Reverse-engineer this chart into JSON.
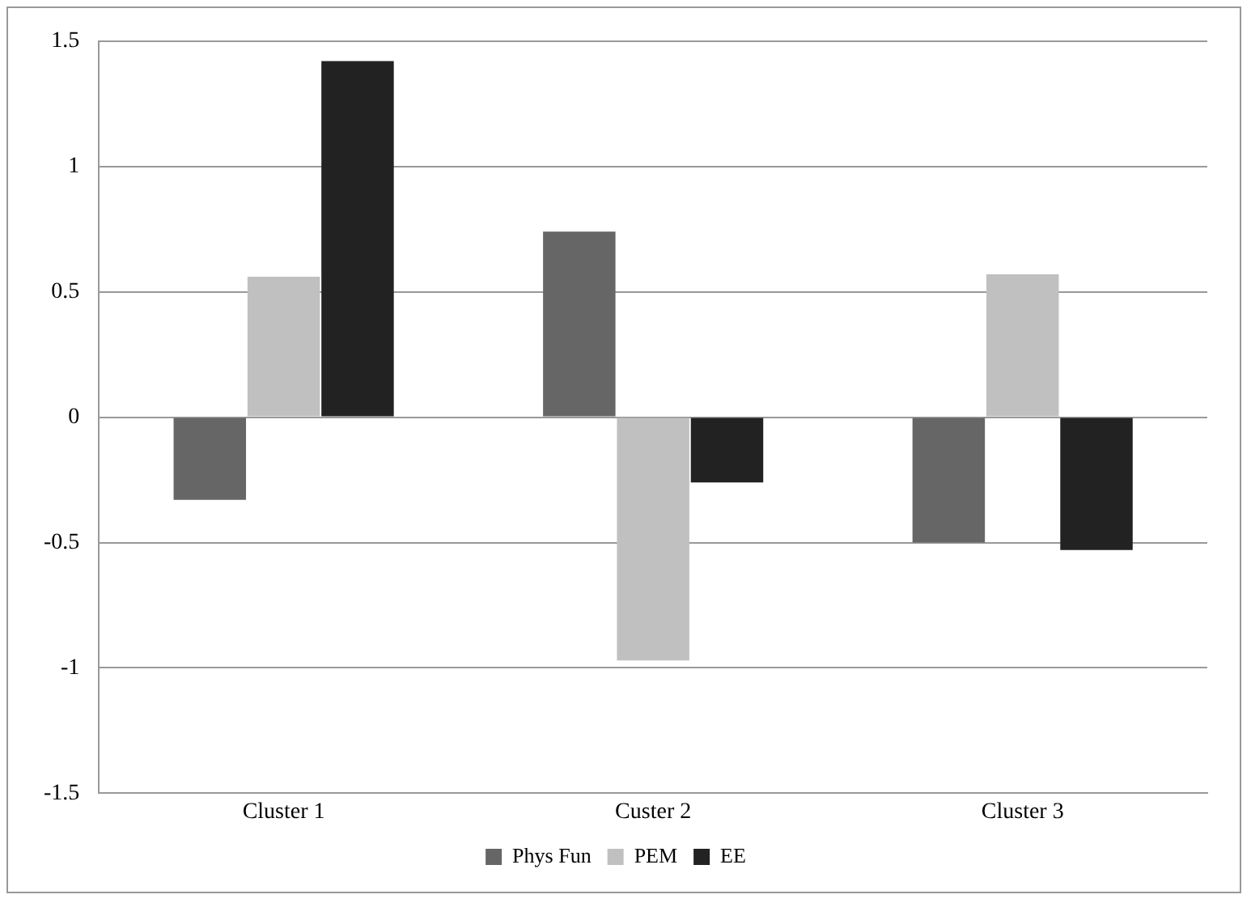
{
  "chart_data": {
    "type": "bar",
    "categories": [
      "Cluster 1",
      "Custer 2",
      "Cluster 3"
    ],
    "series": [
      {
        "name": "Phys Fun",
        "color": "#666666",
        "values": [
          -0.33,
          0.74,
          -0.5
        ]
      },
      {
        "name": "PEM",
        "color": "#c0c0c0",
        "values": [
          0.56,
          -0.97,
          0.57
        ]
      },
      {
        "name": "EE",
        "color": "#222222",
        "values": [
          1.42,
          -0.26,
          -0.53
        ]
      }
    ],
    "ylim": [
      -1.5,
      1.5
    ],
    "yticks": [
      -1.5,
      -1,
      -0.5,
      0,
      0.5,
      1,
      1.5
    ],
    "grid": "y",
    "legend": "bottom"
  }
}
